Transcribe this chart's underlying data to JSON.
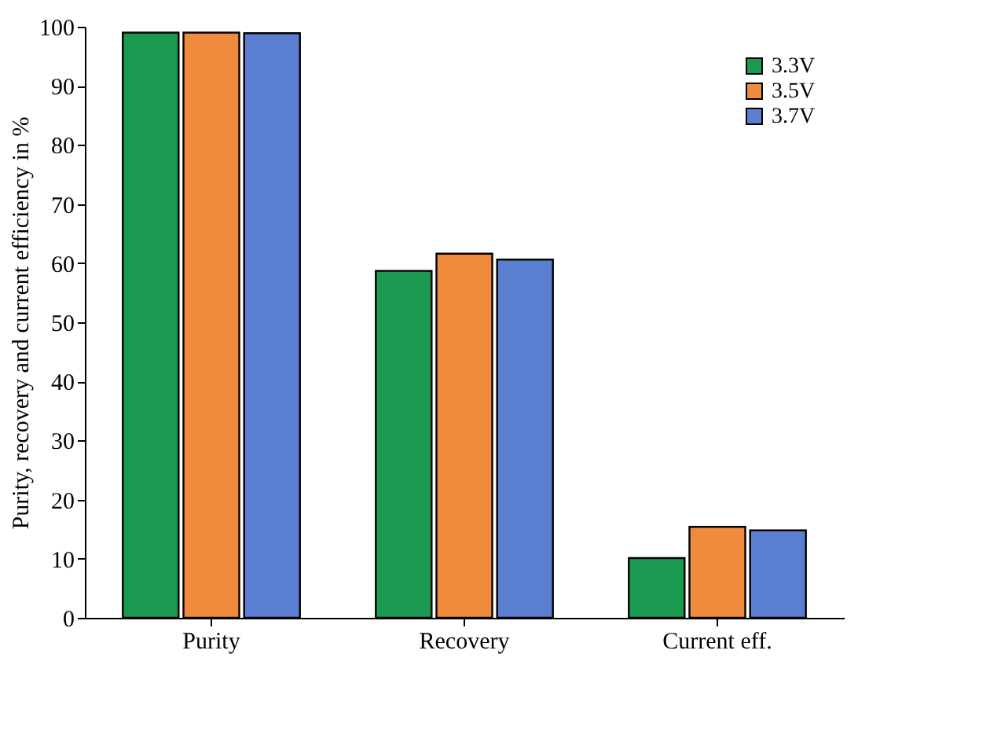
{
  "chart_data": {
    "type": "bar",
    "ylabel": "Purity, recovery and current efficiency in %",
    "categories": [
      "Purity",
      "Recovery",
      "Current eff."
    ],
    "series": [
      {
        "name": "3.3V",
        "color": "#1a9a50",
        "values": [
          99,
          58.7,
          10.1
        ]
      },
      {
        "name": "3.5V",
        "color": "#f08a3c",
        "values": [
          99,
          61.6,
          15.4
        ]
      },
      {
        "name": "3.7V",
        "color": "#5b7fd0",
        "values": [
          98.9,
          60.6,
          14.8
        ]
      }
    ],
    "ylim": [
      0,
      100
    ],
    "yticks": [
      0,
      10,
      20,
      30,
      40,
      50,
      60,
      70,
      80,
      90,
      100
    ],
    "grid": false,
    "legend": "top right"
  }
}
